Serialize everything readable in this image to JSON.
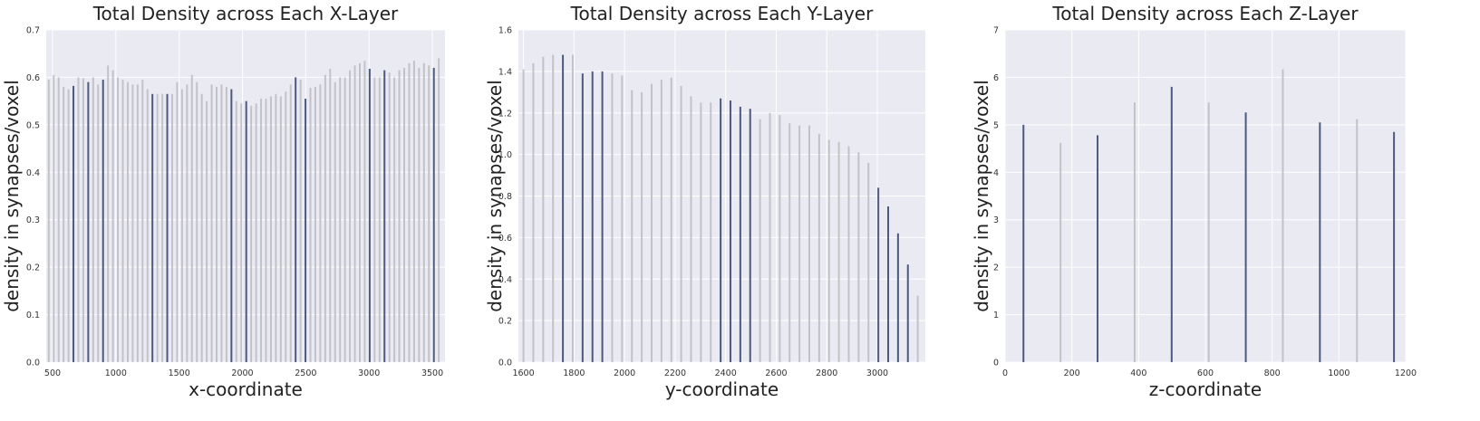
{
  "chart_data": [
    {
      "type": "bar",
      "title": "Total Density across Each X-Layer",
      "xlabel": "x-coordinate",
      "ylabel": "density in synapses/voxel",
      "xlim": [
        450,
        3600
      ],
      "ylim": [
        0,
        0.7
      ],
      "xticks": [
        500,
        1000,
        1500,
        2000,
        2500,
        3000,
        3500
      ],
      "yticks": [
        0.0,
        0.1,
        0.2,
        0.3,
        0.4,
        0.5,
        0.6,
        0.7
      ],
      "grid": true,
      "highlight_color": "#4c5a80",
      "base_color": "#c2c2c8",
      "x": [
        470,
        509,
        548,
        587,
        626,
        665,
        704,
        743,
        782,
        821,
        860,
        899,
        938,
        977,
        1016,
        1055,
        1094,
        1133,
        1172,
        1211,
        1250,
        1289,
        1328,
        1367,
        1406,
        1445,
        1484,
        1523,
        1562,
        1601,
        1640,
        1679,
        1718,
        1757,
        1796,
        1835,
        1874,
        1913,
        1952,
        1991,
        2030,
        2069,
        2108,
        2147,
        2186,
        2225,
        2264,
        2303,
        2342,
        2381,
        2420,
        2459,
        2498,
        2537,
        2576,
        2615,
        2654,
        2693,
        2732,
        2771,
        2810,
        2849,
        2888,
        2927,
        2966,
        3005,
        3044,
        3083,
        3122,
        3161,
        3200,
        3239,
        3278,
        3317,
        3356,
        3395,
        3434,
        3473,
        3512,
        3551
      ],
      "values": [
        0.595,
        0.605,
        0.6,
        0.58,
        0.575,
        0.582,
        0.6,
        0.598,
        0.59,
        0.6,
        0.585,
        0.595,
        0.625,
        0.615,
        0.6,
        0.595,
        0.59,
        0.585,
        0.585,
        0.595,
        0.575,
        0.565,
        0.565,
        0.565,
        0.565,
        0.565,
        0.59,
        0.575,
        0.585,
        0.605,
        0.59,
        0.565,
        0.55,
        0.585,
        0.58,
        0.585,
        0.58,
        0.575,
        0.55,
        0.545,
        0.55,
        0.54,
        0.545,
        0.555,
        0.555,
        0.56,
        0.565,
        0.56,
        0.57,
        0.585,
        0.6,
        0.595,
        0.555,
        0.578,
        0.58,
        0.585,
        0.605,
        0.618,
        0.59,
        0.6,
        0.6,
        0.615,
        0.625,
        0.63,
        0.635,
        0.618,
        0.6,
        0.6,
        0.615,
        0.61,
        0.6,
        0.615,
        0.62,
        0.63,
        0.635,
        0.62,
        0.63,
        0.625,
        0.62,
        0.64
      ],
      "highlight": [
        0,
        0,
        0,
        0,
        0,
        1,
        0,
        0,
        1,
        0,
        0,
        1,
        0,
        0,
        0,
        0,
        0,
        0,
        0,
        0,
        0,
        1,
        0,
        0,
        1,
        0,
        0,
        0,
        0,
        0,
        0,
        0,
        0,
        0,
        0,
        0,
        0,
        1,
        0,
        0,
        1,
        0,
        0,
        0,
        0,
        0,
        0,
        0,
        0,
        0,
        1,
        0,
        1,
        0,
        0,
        0,
        0,
        0,
        0,
        0,
        0,
        0,
        0,
        0,
        0,
        1,
        0,
        0,
        1,
        0,
        0,
        0,
        0,
        0,
        0,
        0,
        0,
        0,
        1,
        0
      ]
    },
    {
      "type": "bar",
      "title": "Total Density across Each Y-Layer",
      "xlabel": "y-coordinate",
      "ylabel": "density in synapses/voxel",
      "xlim": [
        1580,
        3190
      ],
      "ylim": [
        0,
        1.6
      ],
      "xticks": [
        1600,
        1800,
        2000,
        2200,
        2400,
        2600,
        2800,
        3000
      ],
      "yticks": [
        0.0,
        0.2,
        0.4,
        0.6,
        0.8,
        1.0,
        1.2,
        1.4,
        1.6
      ],
      "grid": true,
      "highlight_color": "#4c5a80",
      "base_color": "#c2c2c8",
      "x": [
        1600,
        1639,
        1678,
        1717,
        1756,
        1795,
        1834,
        1873,
        1912,
        1951,
        1990,
        2029,
        2068,
        2107,
        2146,
        2185,
        2224,
        2263,
        2302,
        2341,
        2380,
        2419,
        2458,
        2497,
        2536,
        2575,
        2614,
        2653,
        2692,
        2731,
        2770,
        2809,
        2848,
        2887,
        2926,
        2965,
        3004,
        3043,
        3082,
        3121,
        3160
      ],
      "values": [
        1.41,
        1.44,
        1.47,
        1.48,
        1.48,
        1.48,
        1.39,
        1.4,
        1.4,
        1.39,
        1.38,
        1.31,
        1.3,
        1.34,
        1.36,
        1.37,
        1.33,
        1.28,
        1.25,
        1.25,
        1.27,
        1.26,
        1.23,
        1.22,
        1.17,
        1.2,
        1.19,
        1.15,
        1.14,
        1.14,
        1.1,
        1.07,
        1.06,
        1.04,
        1.01,
        0.96,
        0.84,
        0.75,
        0.62,
        0.47,
        0.32
      ],
      "highlight": [
        0,
        0,
        0,
        0,
        1,
        0,
        1,
        1,
        1,
        0,
        0,
        0,
        0,
        0,
        0,
        0,
        0,
        0,
        0,
        0,
        1,
        1,
        1,
        1,
        0,
        0,
        0,
        0,
        0,
        0,
        0,
        0,
        0,
        0,
        0,
        0,
        1,
        1,
        1,
        1,
        0
      ]
    },
    {
      "type": "bar",
      "title": "Total Density across Each Z-Layer",
      "xlabel": "z-coordinate",
      "ylabel": "density in synapses/voxel",
      "xlim": [
        0,
        1200
      ],
      "ylim": [
        0,
        7
      ],
      "xticks": [
        0,
        200,
        400,
        600,
        800,
        1000,
        1200
      ],
      "yticks": [
        0,
        1,
        2,
        3,
        4,
        5,
        6,
        7
      ],
      "grid": true,
      "highlight_color": "#4c5a80",
      "base_color": "#c2c2c8",
      "x": [
        55,
        166,
        277,
        388,
        499,
        610,
        721,
        832,
        943,
        1054,
        1165
      ],
      "values": [
        5.0,
        4.62,
        4.78,
        5.47,
        5.8,
        5.47,
        5.26,
        6.17,
        5.05,
        5.12,
        4.85
      ],
      "highlight": [
        1,
        0,
        1,
        0,
        1,
        0,
        1,
        0,
        1,
        0,
        1
      ]
    }
  ]
}
